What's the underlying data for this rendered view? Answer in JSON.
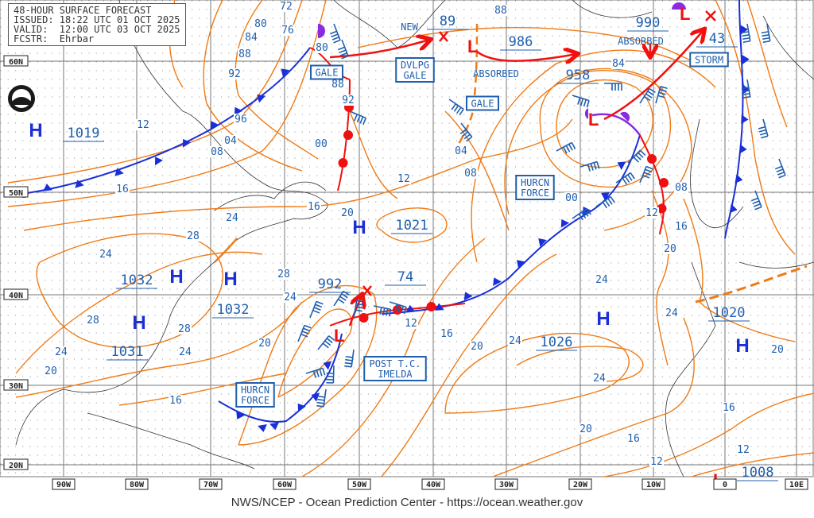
{
  "header": {
    "title": "48-HOUR SURFACE FORECAST",
    "issued": "ISSUED: 18:22 UTC 01 OCT 2025",
    "valid": "VALID:  12:00 UTC 03 OCT 2025",
    "forecaster": "FCSTR:  Ehrbar"
  },
  "footer": "NWS/NCEP - Ocean Prediction Center - https://ocean.weather.gov",
  "lat_labels": [
    "60N",
    "50N",
    "40N",
    "30N",
    "20N"
  ],
  "lon_labels": [
    "90W",
    "80W",
    "70W",
    "60W",
    "50W",
    "40W",
    "30W",
    "20W",
    "10W",
    "0",
    "10E"
  ],
  "high_symbol": "H",
  "low_symbol": "L",
  "center_pressures": [
    "1019",
    "1032",
    "1031",
    "1032",
    "992",
    "74",
    "1021",
    "89",
    "986",
    "958",
    "990",
    "43",
    "1026",
    "1020",
    "1008"
  ],
  "isobar_labels": [
    "72",
    "80",
    "76",
    "84",
    "88",
    "92",
    "96",
    "12",
    "04",
    "08",
    "16",
    "00",
    "92",
    "88",
    "80",
    "12",
    "04",
    "08",
    "16",
    "20",
    "24",
    "28",
    "24",
    "28",
    "24",
    "28",
    "28",
    "24",
    "24",
    "20",
    "20",
    "16",
    "12",
    "16",
    "20",
    "24",
    "24",
    "20",
    "16",
    "12",
    "84",
    "00",
    "08",
    "12",
    "16",
    "20",
    "24",
    "24",
    "20",
    "16",
    "12",
    "88"
  ],
  "boxed_labels": [
    [
      "GALE"
    ],
    [
      "DVLPG",
      "GALE"
    ],
    [
      "GALE"
    ],
    [
      "HURCN",
      "FORCE"
    ],
    [
      "STORM"
    ],
    [
      "POST T.C.",
      "IMELDA"
    ],
    [
      "HURCN",
      "FORCE"
    ]
  ],
  "plain_labels": [
    "NEW",
    "ABSORBED",
    "ABSORBED"
  ],
  "colors": {
    "isobar": "#f07b16",
    "cold_front": "#1a2fd8",
    "warm_front": "#f01010",
    "occluded_front": "#8a2be2",
    "text": "#1f5fae",
    "track": "#f01010"
  },
  "icons": [
    "noaa-logo",
    "wind-barb",
    "low-center-x",
    "storm-track-arrow"
  ]
}
